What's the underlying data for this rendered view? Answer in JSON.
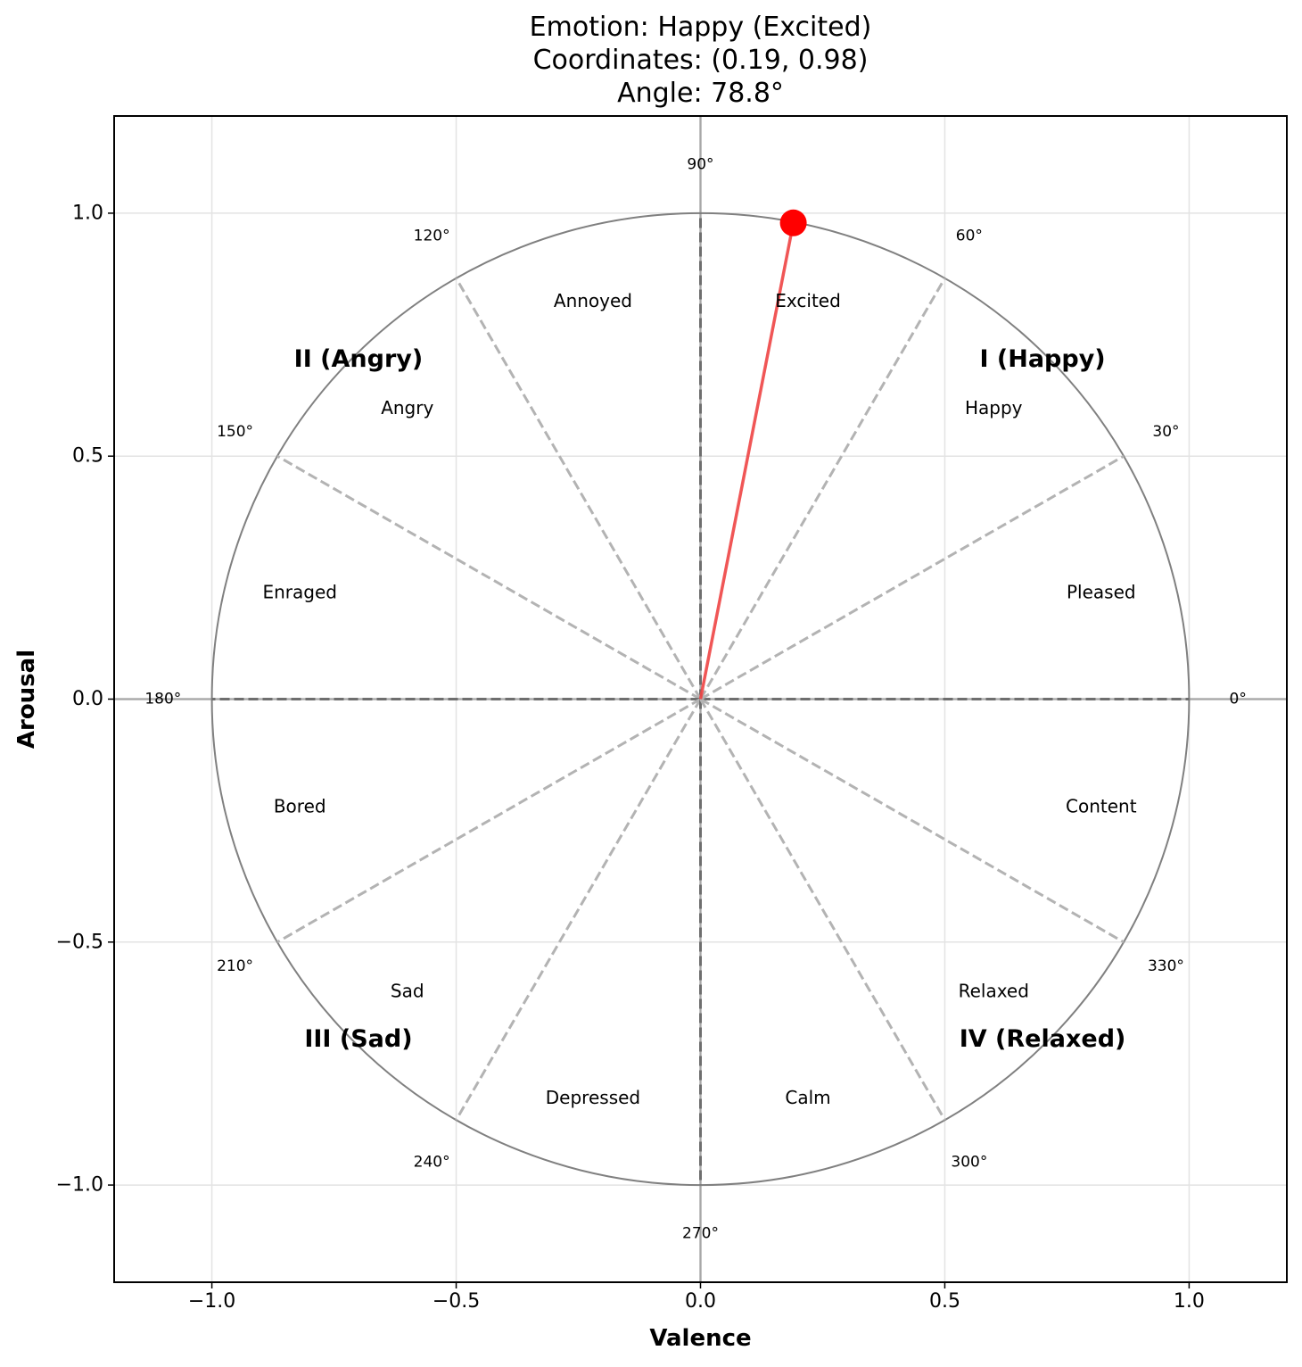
{
  "chart_data": {
    "type": "scatter",
    "title": [
      "Emotion: Happy (Excited)",
      "Coordinates: (0.19, 0.98)",
      "Angle: 78.8°"
    ],
    "xlabel": "Valence",
    "ylabel": "Arousal",
    "xlim": [
      -1.2,
      1.2
    ],
    "ylim": [
      -1.2,
      1.2
    ],
    "xticks": [
      -1.0,
      -0.5,
      0.0,
      0.5,
      1.0
    ],
    "xtick_labels": [
      "−1.0",
      "−0.5",
      "0.0",
      "0.5",
      "1.0"
    ],
    "yticks": [
      1.0,
      0.5,
      0.0,
      -0.5,
      -1.0
    ],
    "ytick_labels": [
      "1.0",
      "0.5",
      "0.0",
      "−0.5",
      "−1.0"
    ],
    "grid": true,
    "unit_circle_radius": 1.0,
    "sector_angles_deg": [
      0,
      30,
      60,
      90,
      120,
      150,
      180,
      210,
      240,
      270,
      300,
      330
    ],
    "angle_labels": [
      "0°",
      "30°",
      "60°",
      "90°",
      "120°",
      "150°",
      "180°",
      "210°",
      "240°",
      "270°",
      "300°",
      "330°"
    ],
    "emotions": [
      {
        "label": "Pleased",
        "x": 0.82,
        "y": 0.22
      },
      {
        "label": "Happy",
        "x": 0.6,
        "y": 0.6
      },
      {
        "label": "Excited",
        "x": 0.22,
        "y": 0.82
      },
      {
        "label": "Annoyed",
        "x": -0.22,
        "y": 0.82
      },
      {
        "label": "Angry",
        "x": -0.6,
        "y": 0.6
      },
      {
        "label": "Enraged",
        "x": -0.82,
        "y": 0.22
      },
      {
        "label": "Bored",
        "x": -0.82,
        "y": -0.22
      },
      {
        "label": "Sad",
        "x": -0.6,
        "y": -0.6
      },
      {
        "label": "Depressed",
        "x": -0.22,
        "y": -0.82
      },
      {
        "label": "Calm",
        "x": 0.22,
        "y": -0.82
      },
      {
        "label": "Relaxed",
        "x": 0.6,
        "y": -0.6
      },
      {
        "label": "Content",
        "x": 0.82,
        "y": -0.22
      }
    ],
    "quadrants": [
      {
        "label": "I (Happy)",
        "x": 0.7,
        "y": 0.7
      },
      {
        "label": "II (Angry)",
        "x": -0.7,
        "y": 0.7
      },
      {
        "label": "III (Sad)",
        "x": -0.7,
        "y": -0.7
      },
      {
        "label": "IV (Relaxed)",
        "x": 0.7,
        "y": -0.7
      }
    ],
    "point": {
      "x": 0.19,
      "y": 0.98,
      "angle_deg": 78.8,
      "color": "#ff0000"
    },
    "colors": {
      "vector": "#ee4444",
      "circle": "#808080",
      "sector": "#b3b3b3",
      "axis_line": "#808080"
    }
  }
}
